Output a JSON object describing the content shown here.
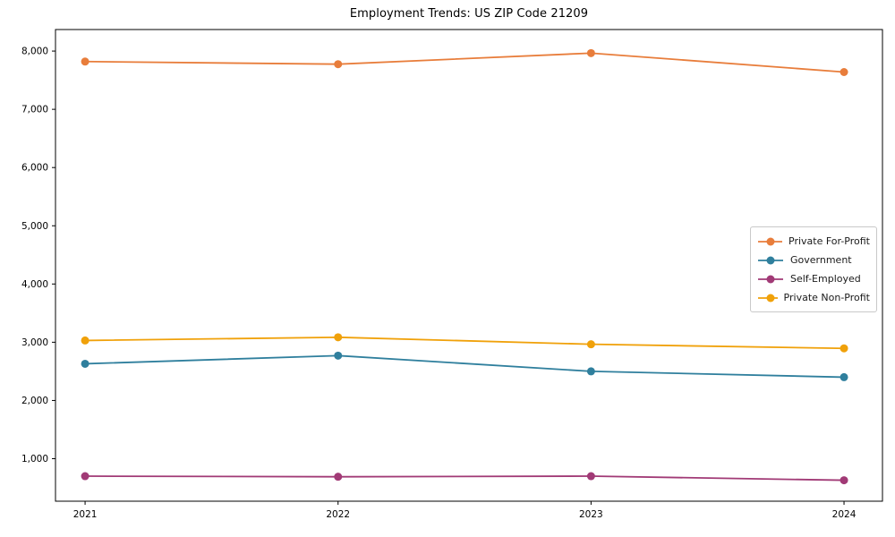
{
  "page": {
    "background": "#ffffff"
  },
  "chart_data": {
    "type": "line",
    "title": "Employment Trends: US ZIP Code 21209",
    "x": [
      2021,
      2022,
      2023,
      2024
    ],
    "x_tick_labels": [
      "2021",
      "2022",
      "2023",
      "2024"
    ],
    "series": [
      {
        "name": "Private For-Profit",
        "color": "#e87d3b",
        "values": [
          7820,
          7775,
          7965,
          7640
        ]
      },
      {
        "name": "Government",
        "color": "#2f7f9d",
        "values": [
          2630,
          2770,
          2500,
          2400
        ]
      },
      {
        "name": "Self-Employed",
        "color": "#a13a76",
        "values": [
          700,
          690,
          700,
          630
        ]
      },
      {
        "name": "Private Non-Profit",
        "color": "#f0a10a",
        "values": [
          3030,
          3085,
          2965,
          2895
        ]
      }
    ],
    "yticks": [
      1000,
      2000,
      3000,
      4000,
      5000,
      6000,
      7000,
      8000
    ],
    "ytick_labels": [
      "1,000",
      "2,000",
      "3,000",
      "4,000",
      "5,000",
      "6,000",
      "7,000",
      "8,000"
    ],
    "ylim": [
      270,
      8370
    ],
    "xlim": [
      2020.883,
      2024.152
    ],
    "grid": false,
    "legend_position": "center-right",
    "axis_color": "#000000",
    "legend_border_color": "#c9c9c9",
    "marker": "circle",
    "marker_radius": 4.5,
    "line_width": 1.8
  }
}
